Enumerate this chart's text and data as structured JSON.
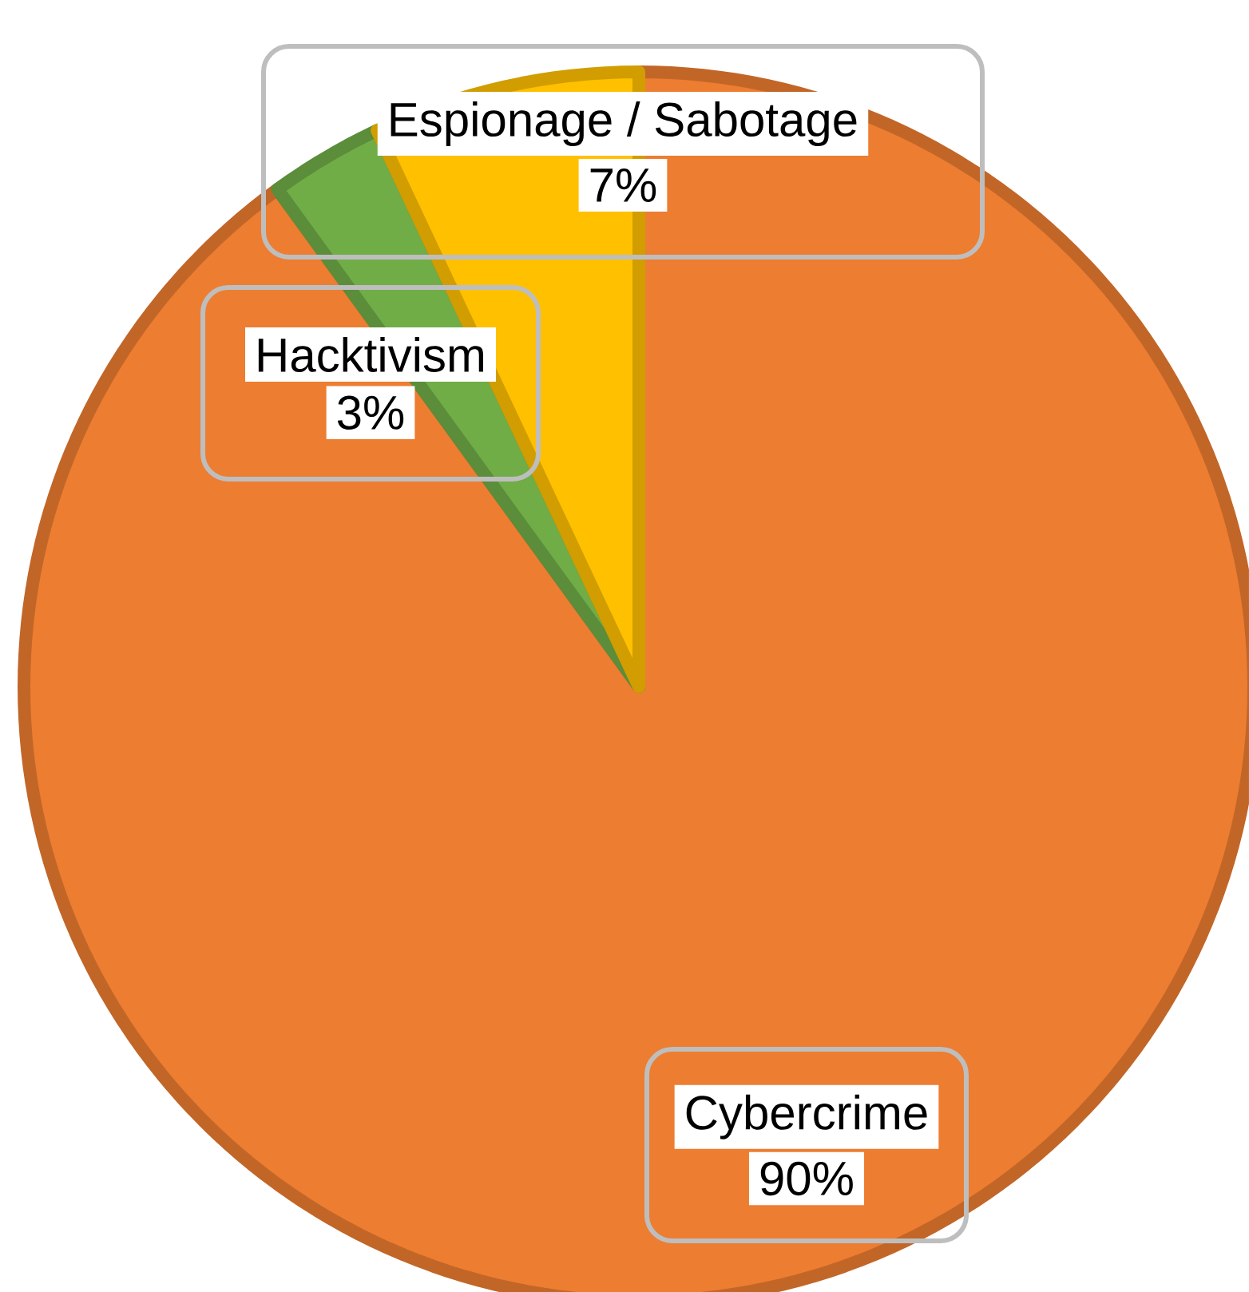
{
  "chart_data": {
    "type": "pie",
    "categories": [
      "Cybercrime",
      "Hacktivism",
      "Espionage / Sabotage"
    ],
    "values": [
      90,
      3,
      7
    ],
    "value_labels": [
      "90%",
      "3%",
      "7%"
    ],
    "colors": [
      "#ed7d31",
      "#70ad47",
      "#ffc000"
    ]
  }
}
